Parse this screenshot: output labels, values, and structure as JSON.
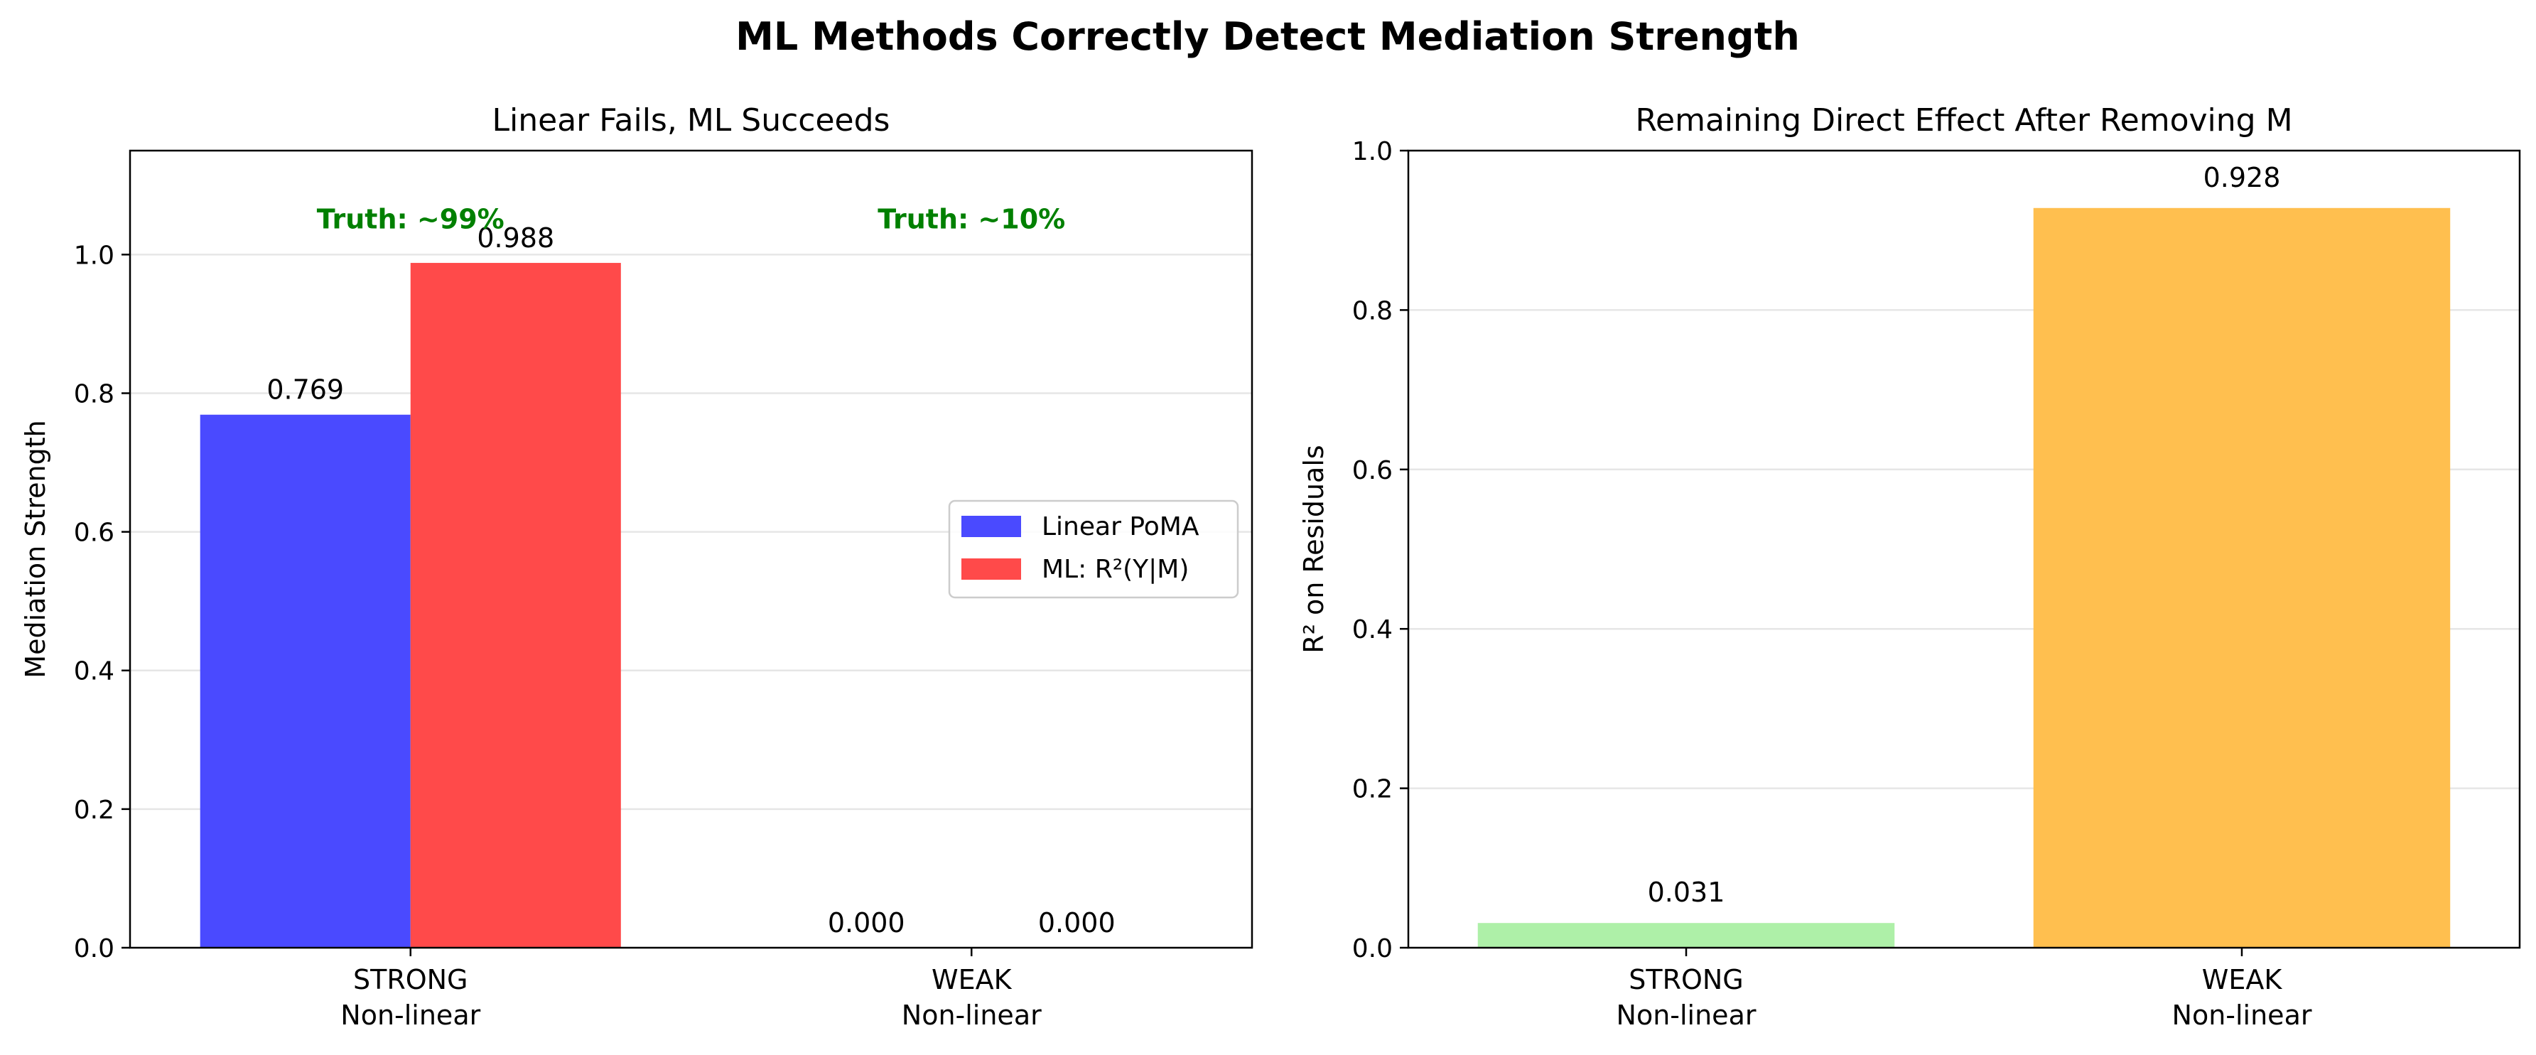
{
  "figure": {
    "suptitle": "ML Methods Correctly Detect Mediation Strength"
  },
  "chart_data": [
    {
      "type": "bar",
      "title": "Linear Fails, ML Succeeds",
      "xlabel": "",
      "ylabel": "Mediation Strength",
      "ylim": [
        0,
        1.15
      ],
      "yticks": [
        0.0,
        0.2,
        0.4,
        0.6,
        0.8,
        1.0
      ],
      "grid": "y",
      "legend_position": "center-right",
      "categories": [
        "STRONG\nNon-linear",
        "WEAK\nNon-linear"
      ],
      "series": [
        {
          "name": "Linear PoMA",
          "values": [
            0.769,
            0.0
          ],
          "labels": [
            "0.769",
            "0.000"
          ],
          "color": "#4a4aff"
        },
        {
          "name": "ML: R²(Y|M)",
          "values": [
            0.988,
            0.0
          ],
          "labels": [
            "0.988",
            "0.000"
          ],
          "color": "#ff4a4a"
        }
      ],
      "annotations": [
        {
          "text": "Truth: ~99%",
          "category": 0,
          "y": 1.05,
          "color": "#008000"
        },
        {
          "text": "Truth: ~10%",
          "category": 1,
          "y": 1.05,
          "color": "#008000"
        }
      ]
    },
    {
      "type": "bar",
      "title": "Remaining Direct Effect After Removing M",
      "xlabel": "",
      "ylabel": "R² on Residuals",
      "ylim": [
        0,
        1.0
      ],
      "yticks": [
        0.0,
        0.2,
        0.4,
        0.6,
        0.8,
        1.0
      ],
      "grid": "y",
      "categories": [
        "STRONG\nNon-linear",
        "WEAK\nNon-linear"
      ],
      "values": [
        0.031,
        0.928
      ],
      "labels": [
        "0.031",
        "0.928"
      ],
      "colors": [
        "#aef0a8",
        "#ffbf4f"
      ]
    }
  ]
}
